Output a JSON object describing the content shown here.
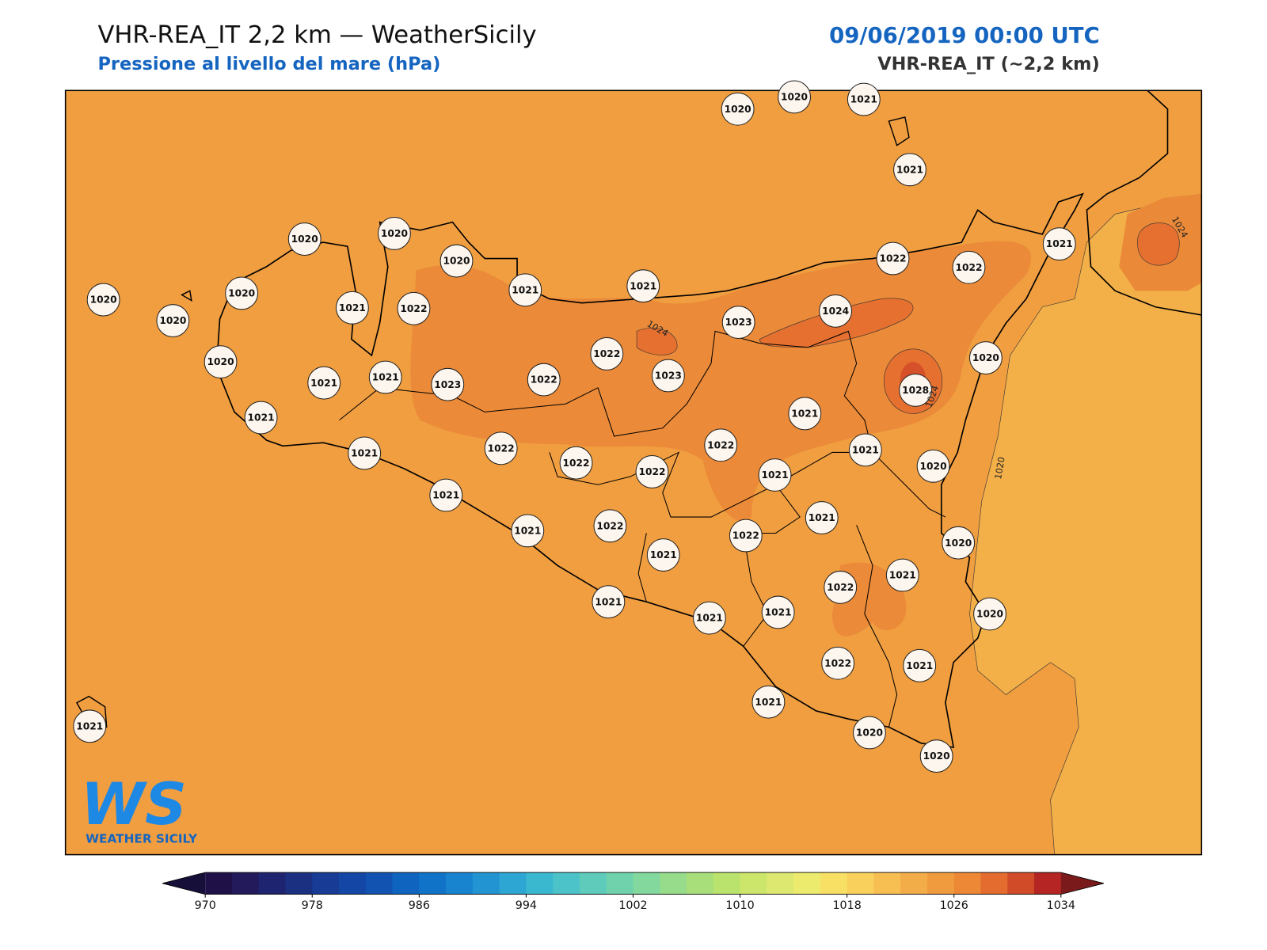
{
  "header": {
    "title": "VHR-REA_IT 2,2 km — WeatherSicily",
    "subtitle": "Pressione al livello del mare (hPa)",
    "date": "09/06/2019 00:00 UTC",
    "model": "VHR-REA_IT (~2,2 km)"
  },
  "stations": [
    "1020",
    "1020",
    "1021",
    "1021",
    "1020",
    "1020",
    "1020",
    "1020",
    "1020",
    "1020",
    "1021",
    "1022",
    "1021",
    "1021",
    "1022",
    "1022",
    "1021",
    "1023",
    "1024",
    "1022",
    "1023",
    "1022",
    "1023",
    "1021",
    "1021",
    "1020",
    "1021",
    "1020",
    "1028",
    "1021",
    "1022",
    "1021",
    "1020",
    "1021",
    "1022",
    "1022",
    "1022",
    "1021",
    "1021",
    "1021",
    "1022",
    "1021",
    "1022",
    "1021",
    "1020",
    "1022",
    "1021",
    "1021",
    "1021",
    "1021",
    "1020",
    "1022",
    "1021",
    "1021",
    "1020",
    "1020",
    "1021"
  ],
  "contour_labels": [
    "1024",
    "1024",
    "1024",
    "1020"
  ],
  "colorbar": {
    "ticks": [
      970,
      978,
      986,
      994,
      1002,
      1010,
      1018,
      1026,
      1034
    ],
    "colors": [
      "#1f1147",
      "#221a5a",
      "#1f2470",
      "#1c3082",
      "#183c95",
      "#1447a5",
      "#1253b2",
      "#0f64bf",
      "#1073c8",
      "#1883cf",
      "#2294d2",
      "#2ea6d3",
      "#3ab8d0",
      "#4bc3c8",
      "#5ecbbb",
      "#6fd2ac",
      "#82d89d",
      "#96dc8b",
      "#a8df7a",
      "#b9e36c",
      "#cce56b",
      "#dde871",
      "#eceb6d",
      "#f8e065",
      "#fad05c",
      "#f7be52",
      "#f3ad48",
      "#f09b3e",
      "#ec8836",
      "#e36c2e",
      "#d14b28",
      "#b42524"
    ],
    "under": "#150f3a",
    "over": "#7a1a1a"
  },
  "logo": {
    "mark": "WS",
    "name": "WEATHER SICILY"
  }
}
